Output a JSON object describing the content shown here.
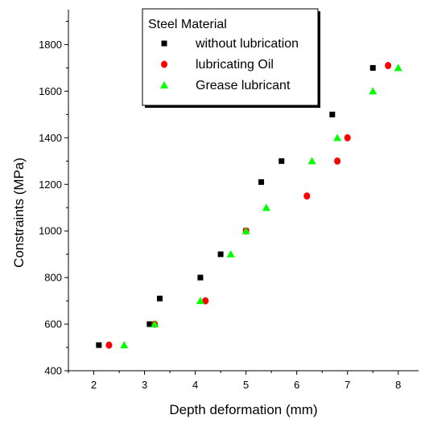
{
  "chart_data": {
    "type": "scatter",
    "title": "",
    "xlabel": "Depth deformation (mm)",
    "ylabel": "Constraints (MPa)",
    "xlim": [
      1.5,
      8.4
    ],
    "ylim": [
      400,
      1950
    ],
    "x_ticks": [
      2,
      3,
      4,
      5,
      6,
      7,
      8
    ],
    "y_ticks": [
      400,
      600,
      800,
      1000,
      1200,
      1400,
      1600,
      1800
    ],
    "grid": false,
    "legend": {
      "title": "Steel Material",
      "placement": "top-center"
    },
    "series": [
      {
        "name": "without lubrication",
        "marker": "square",
        "color": "#000000",
        "points": [
          [
            2.1,
            510
          ],
          [
            3.1,
            600
          ],
          [
            3.3,
            710
          ],
          [
            4.1,
            800
          ],
          [
            4.5,
            900
          ],
          [
            5.0,
            1000
          ],
          [
            5.3,
            1210
          ],
          [
            5.7,
            1300
          ],
          [
            6.7,
            1500
          ],
          [
            7.5,
            1700
          ]
        ]
      },
      {
        "name": "lubricating Oil",
        "marker": "circle",
        "color": "#ff0000",
        "points": [
          [
            2.3,
            510
          ],
          [
            3.2,
            600
          ],
          [
            4.2,
            700
          ],
          [
            5.0,
            1000
          ],
          [
            6.2,
            1150
          ],
          [
            6.8,
            1300
          ],
          [
            7.0,
            1400
          ],
          [
            7.8,
            1710
          ]
        ]
      },
      {
        "name": "Grease lubricant",
        "marker": "triangle",
        "color": "#00ff00",
        "points": [
          [
            2.6,
            510
          ],
          [
            3.2,
            600
          ],
          [
            4.1,
            700
          ],
          [
            4.7,
            900
          ],
          [
            5.0,
            1000
          ],
          [
            5.4,
            1100
          ],
          [
            6.3,
            1300
          ],
          [
            6.8,
            1400
          ],
          [
            7.5,
            1600
          ],
          [
            8.0,
            1700
          ]
        ]
      }
    ]
  }
}
